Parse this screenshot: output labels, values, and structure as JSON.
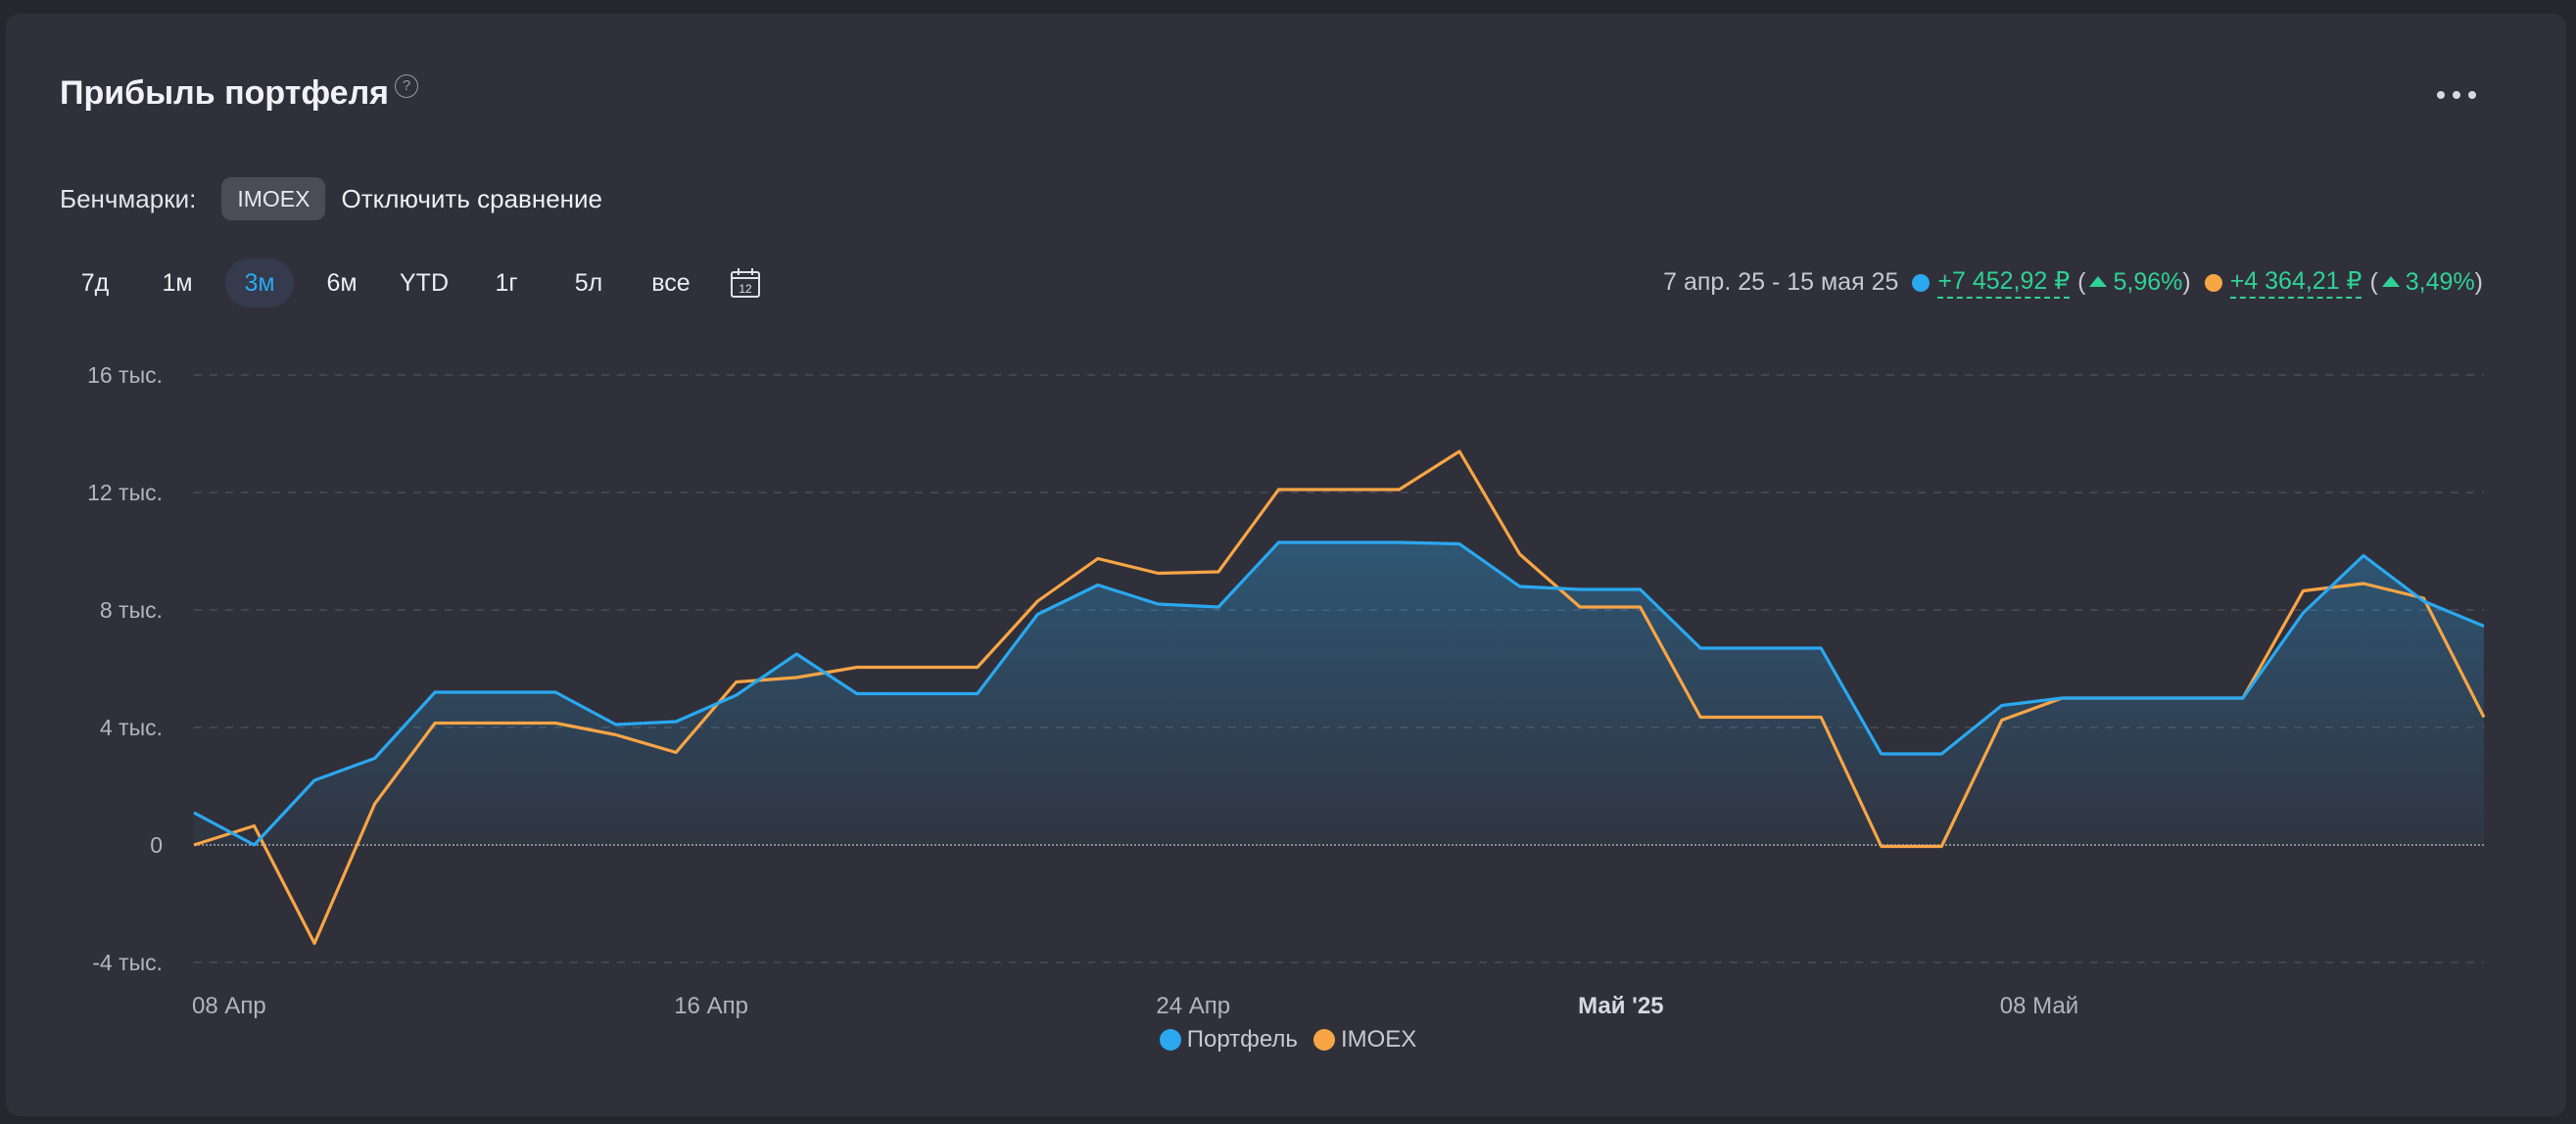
{
  "header": {
    "title": "Прибыль портфеля",
    "help_glyph": "?",
    "more_icon": "more-horizontal-icon"
  },
  "benchmarks": {
    "label": "Бенчмарки:",
    "chip": "IMOEX",
    "disable_label": "Отключить сравнение"
  },
  "periods": {
    "tabs": [
      "7д",
      "1м",
      "3м",
      "6м",
      "YTD",
      "1г",
      "5л",
      "все"
    ],
    "active": "3м",
    "calendar_icon": "calendar-icon",
    "calendar_day": "12"
  },
  "summary": {
    "range": "7 апр. 25 - 15 мая 25",
    "portfolio_value": "+7 452,92 ₽",
    "portfolio_pct": "5,96%",
    "benchmark_value": "+4 364,21 ₽",
    "benchmark_pct": "3,49%",
    "paren_open": "(",
    "paren_close": ")"
  },
  "colors": {
    "portfolio": "#2aa8f0",
    "benchmark": "#f7a545",
    "positive": "#2fd294"
  },
  "chart_data": {
    "type": "line",
    "title": "Прибыль портфеля",
    "y_ticks": [
      16000,
      12000,
      8000,
      4000,
      0,
      -4000
    ],
    "y_tick_labels": [
      "16 тыс.",
      "12 тыс.",
      "8 тыс.",
      "4 тыс.",
      "0",
      "-4 тыс."
    ],
    "ylim": [
      -4000,
      16000
    ],
    "x_ticks": [
      {
        "date": "2025-04-08",
        "label": "08 Апр",
        "bold": false
      },
      {
        "date": "2025-04-16",
        "label": "16 Апр",
        "bold": false
      },
      {
        "date": "2025-04-24",
        "label": "24 Апр",
        "bold": false
      },
      {
        "date": "2025-05-01",
        "label": "Май '25",
        "bold": true
      },
      {
        "date": "2025-05-08",
        "label": "08 Май",
        "bold": false
      }
    ],
    "x": [
      "2025-04-08",
      "2025-04-09",
      "2025-04-10",
      "2025-04-11",
      "2025-04-12",
      "2025-04-13",
      "2025-04-14",
      "2025-04-15",
      "2025-04-16",
      "2025-04-17",
      "2025-04-18",
      "2025-04-19",
      "2025-04-20",
      "2025-04-21",
      "2025-04-22",
      "2025-04-23",
      "2025-04-24",
      "2025-04-25",
      "2025-04-26",
      "2025-04-27",
      "2025-04-28",
      "2025-04-29",
      "2025-04-30",
      "2025-05-01",
      "2025-05-02",
      "2025-05-03",
      "2025-05-04",
      "2025-05-05",
      "2025-05-06",
      "2025-05-07",
      "2025-05-08",
      "2025-05-09",
      "2025-05-10",
      "2025-05-11",
      "2025-05-12",
      "2025-05-13",
      "2025-05-14",
      "2025-05-15",
      "2025-05-16"
    ],
    "series": [
      {
        "name": "Портфель",
        "color": "#2aa8f0",
        "fill": true,
        "values": [
          1100,
          0,
          2200,
          2950,
          5200,
          5200,
          5200,
          4100,
          4200,
          5100,
          6500,
          5150,
          5150,
          5150,
          7850,
          8850,
          8200,
          8100,
          10300,
          10300,
          10300,
          10250,
          8800,
          8700,
          8700,
          6700,
          6700,
          6700,
          3100,
          3100,
          4750,
          5000,
          5000,
          5000,
          5000,
          7900,
          9850,
          8300,
          7450
        ]
      },
      {
        "name": "IMOEX",
        "color": "#f7a545",
        "fill": false,
        "values": [
          0,
          650,
          -3350,
          1400,
          4150,
          4150,
          4150,
          3750,
          3150,
          5550,
          5700,
          6050,
          6050,
          6050,
          8300,
          9750,
          9250,
          9300,
          12100,
          12100,
          12100,
          13400,
          9900,
          8100,
          8100,
          4350,
          4350,
          4350,
          -50,
          -50,
          4250,
          5000,
          5000,
          5000,
          5000,
          8650,
          8900,
          8400,
          4350
        ]
      }
    ],
    "legend": "bottom-center",
    "grid": true
  }
}
